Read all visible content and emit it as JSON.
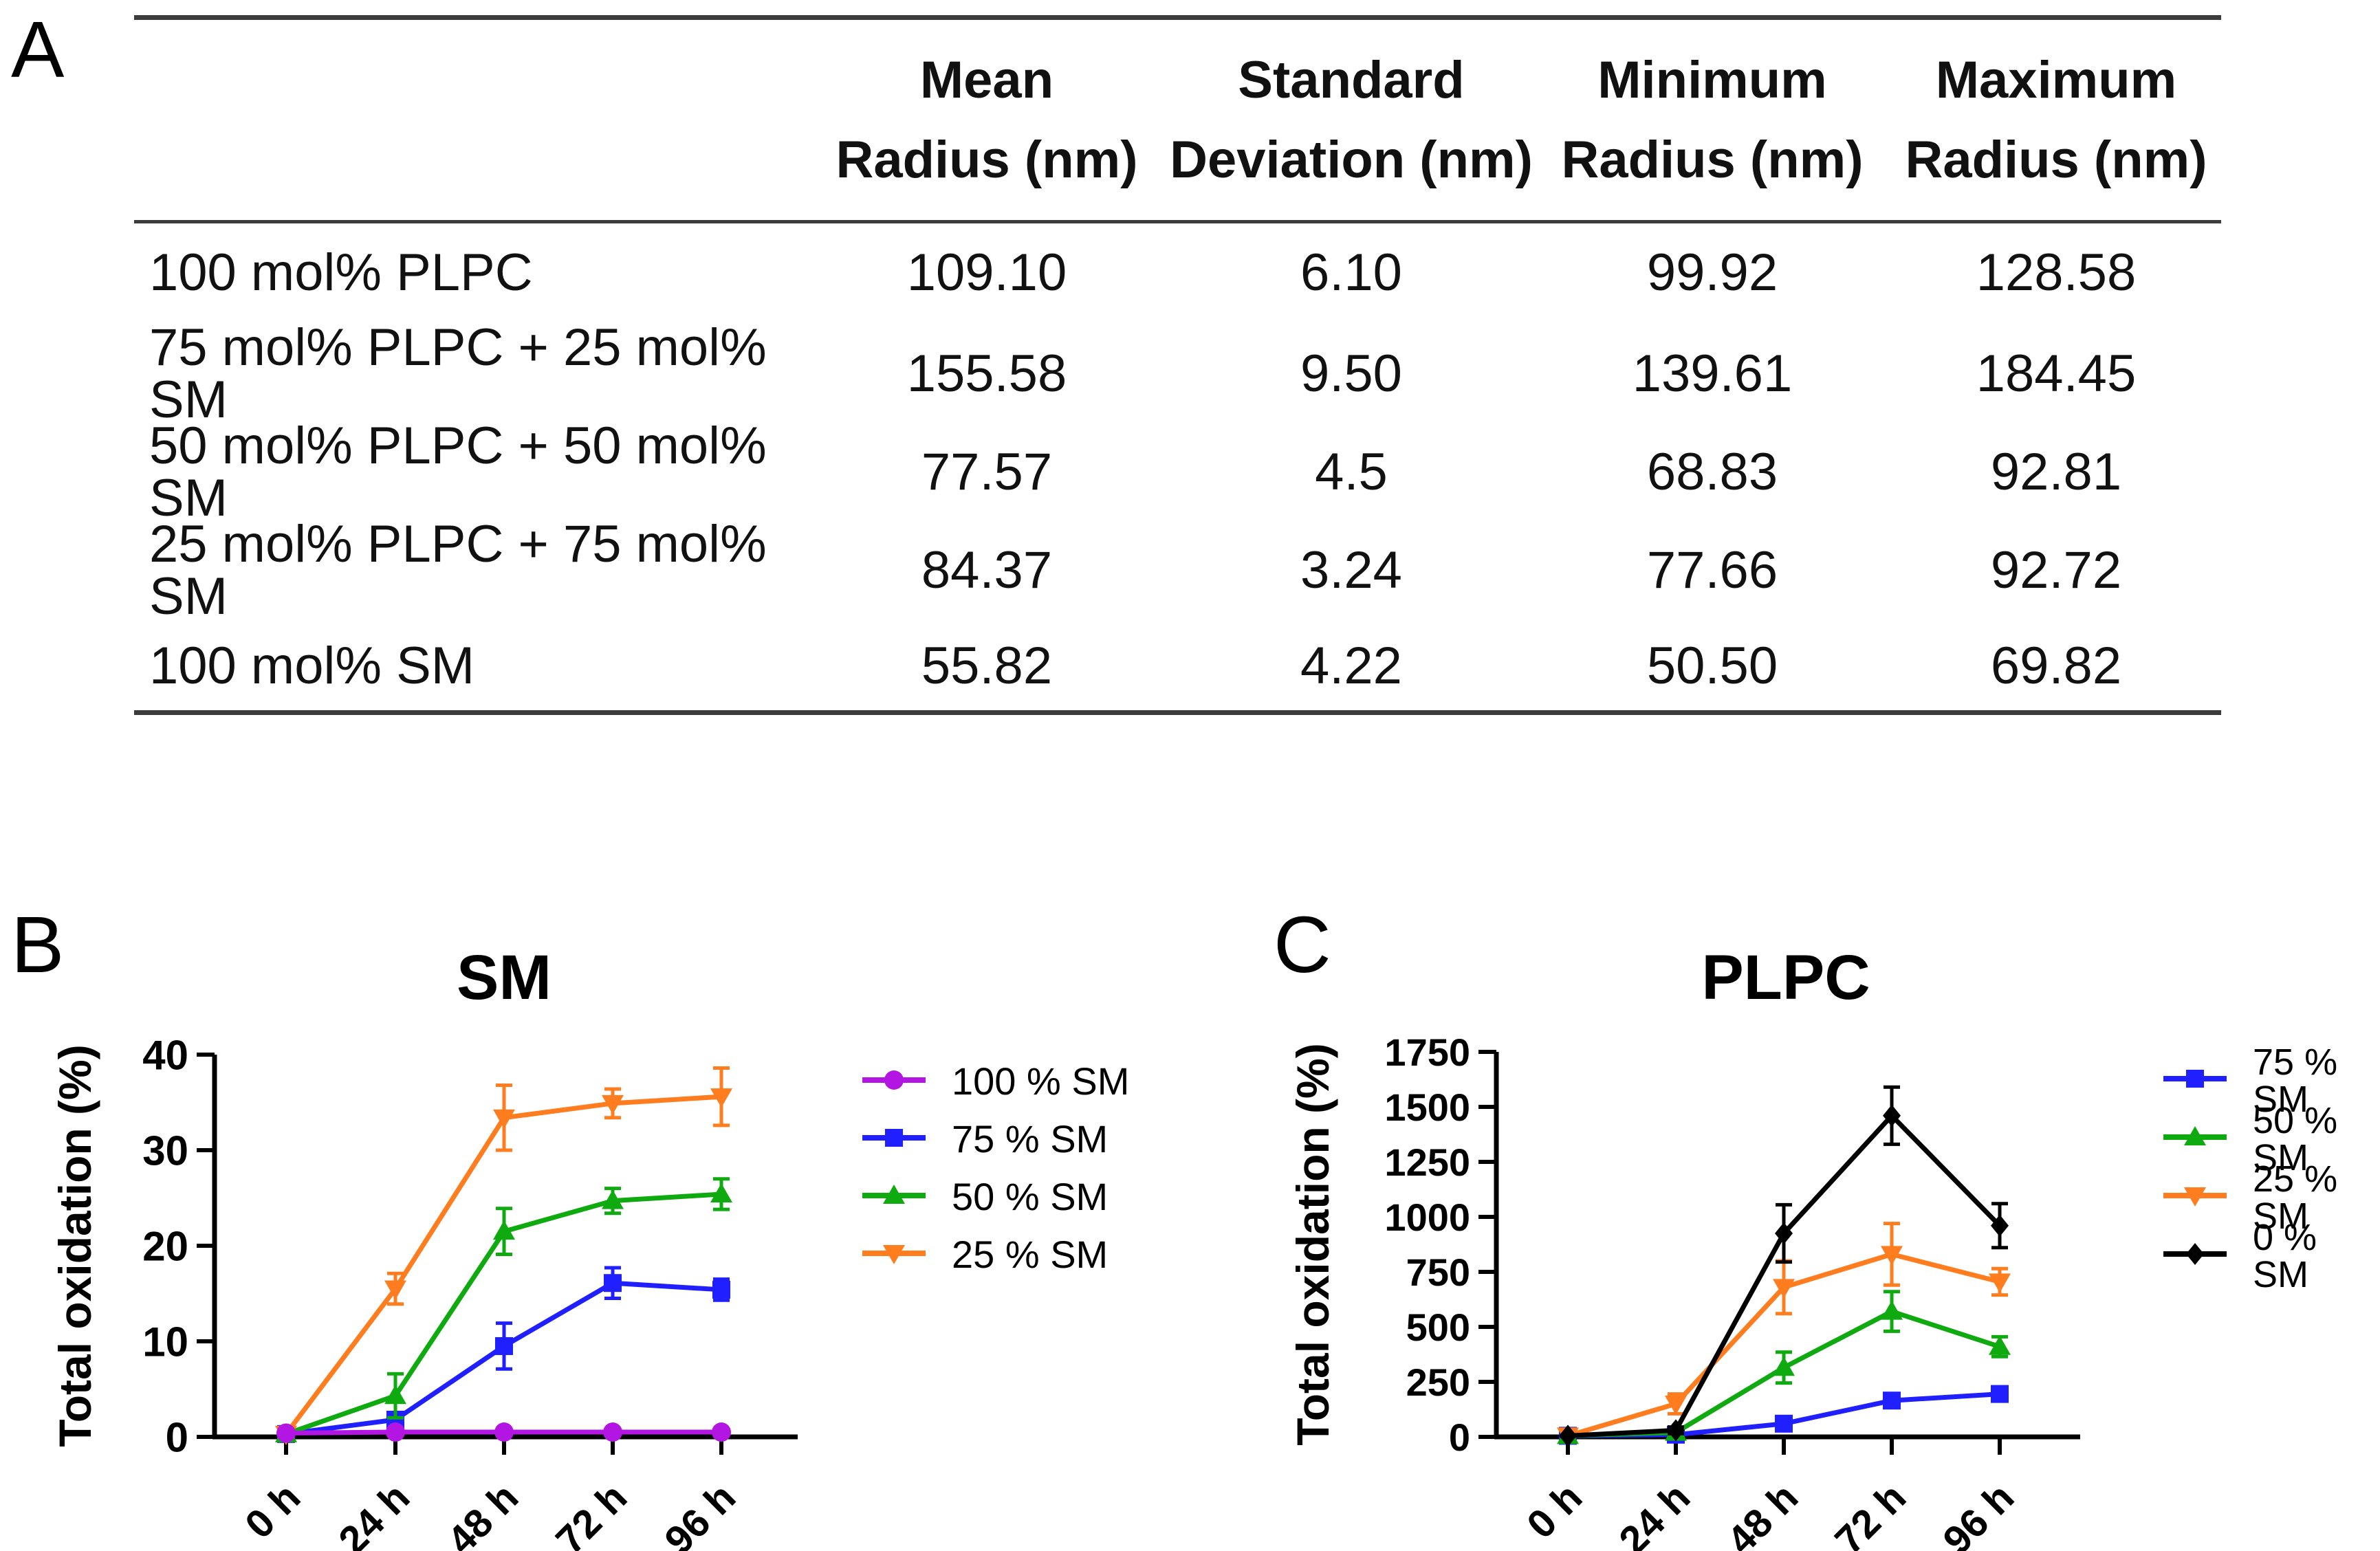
{
  "panels": {
    "a": "A",
    "b": "B",
    "c": "C"
  },
  "table": {
    "headers": [
      {
        "line1": "Mean",
        "line2": "Radius (nm)"
      },
      {
        "line1": "Standard",
        "line2": "Deviation (nm)"
      },
      {
        "line1": "Minimum",
        "line2": "Radius (nm)"
      },
      {
        "line1": "Maximum",
        "line2": "Radius (nm)"
      }
    ],
    "rows": [
      {
        "label": "100 mol% PLPC",
        "mean": "109.10",
        "sd": "6.10",
        "min": "99.92",
        "max": "128.58"
      },
      {
        "label": "75 mol% PLPC + 25 mol% SM",
        "mean": "155.58",
        "sd": "9.50",
        "min": "139.61",
        "max": "184.45"
      },
      {
        "label": "50 mol% PLPC + 50 mol% SM",
        "mean": "77.57",
        "sd": "4.5",
        "min": "68.83",
        "max": "92.81"
      },
      {
        "label": "25 mol% PLPC + 75 mol% SM",
        "mean": "84.37",
        "sd": "3.24",
        "min": "77.66",
        "max": "92.72"
      },
      {
        "label": "100 mol% SM",
        "mean": "55.82",
        "sd": "4.22",
        "min": "50.50",
        "max": "69.82"
      }
    ]
  },
  "chart_data": [
    {
      "id": "sm",
      "type": "line",
      "title": "SM",
      "ylabel": "Total oxidation (%)",
      "ylim": [
        0,
        40
      ],
      "yticks": [
        0,
        10,
        20,
        30,
        40
      ],
      "categories": [
        "0 h",
        "24 h",
        "48 h",
        "72 h",
        "96 h"
      ],
      "grid": false,
      "legend_position": "right",
      "series": [
        {
          "name": "100 % SM",
          "color": "#B316E3",
          "marker": "circle",
          "values": [
            0.4,
            0.5,
            0.5,
            0.5,
            0.5
          ],
          "errors": [
            0.3,
            0.3,
            0.3,
            0.3,
            0.3
          ]
        },
        {
          "name": "75 % SM",
          "color": "#1F1FFF",
          "marker": "square",
          "values": [
            0.3,
            1.8,
            9.5,
            16.1,
            15.4
          ],
          "errors": [
            0.3,
            0.7,
            2.4,
            1.6,
            1.1
          ]
        },
        {
          "name": "50 % SM",
          "color": "#0FAA10",
          "marker": "triangle-up",
          "values": [
            0.3,
            4.3,
            21.5,
            24.7,
            25.4
          ],
          "errors": [
            0.3,
            2.3,
            2.4,
            1.3,
            1.6
          ]
        },
        {
          "name": "25 % SM",
          "color": "#FF7D1F",
          "marker": "triangle-down",
          "values": [
            0.3,
            15.5,
            33.4,
            34.9,
            35.6
          ],
          "errors": [
            0.3,
            1.6,
            3.4,
            1.5,
            3.0
          ]
        }
      ]
    },
    {
      "id": "plpc",
      "type": "line",
      "title": "PLPC",
      "ylabel": "Total oxidation (%)",
      "ylim": [
        0,
        1750
      ],
      "yticks": [
        0,
        250,
        500,
        750,
        1000,
        1250,
        1500,
        1750
      ],
      "categories": [
        "0 h",
        "24 h",
        "48 h",
        "72 h",
        "96 h"
      ],
      "grid": false,
      "legend_position": "right",
      "series": [
        {
          "name": "75 % SM",
          "color": "#1F1FFF",
          "marker": "square",
          "values": [
            5,
            10,
            60,
            165,
            195
          ],
          "errors": [
            0,
            0,
            0,
            0,
            0
          ]
        },
        {
          "name": "50 % SM",
          "color": "#0FAA10",
          "marker": "triangle-up",
          "values": [
            5,
            20,
            315,
            570,
            410
          ],
          "errors": [
            0,
            10,
            70,
            90,
            45
          ]
        },
        {
          "name": "25 % SM",
          "color": "#FF7D1F",
          "marker": "triangle-down",
          "values": [
            5,
            150,
            680,
            830,
            705
          ],
          "errors": [
            0,
            45,
            120,
            140,
            60
          ]
        },
        {
          "name": "0 % SM",
          "color": "#000000",
          "marker": "diamond",
          "values": [
            5,
            30,
            925,
            1460,
            960
          ],
          "errors": [
            0,
            15,
            130,
            130,
            100
          ]
        }
      ]
    }
  ]
}
